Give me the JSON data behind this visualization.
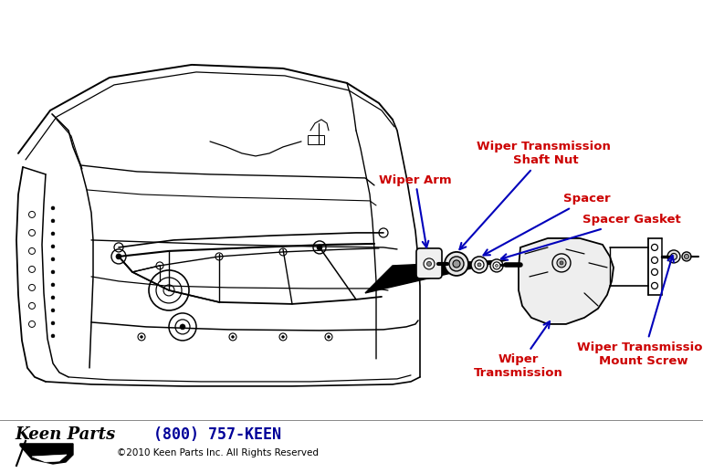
{
  "background_color": "#ffffff",
  "label_color_red": "#cc0000",
  "label_color_blue": "#0000bb",
  "line_color": "#000000",
  "labels": {
    "wiper_arm": "Wiper Arm",
    "wiper_transmission": "Wiper\nTransmission",
    "wiper_transmission_shaft_nut": "Wiper Transmission \nShaft Nut",
    "spacer": "Spacer",
    "spacer_gasket": "Spacer Gasket",
    "wiper_transmission_mount_screw": "Wiper Transmission\nMount Screw"
  },
  "footer_phone": "(800) 757-KEEN",
  "footer_copy": "©2010 Keen Parts Inc. All Rights Reserved",
  "figsize": [
    7.7,
    5.18
  ],
  "dpi": 100
}
